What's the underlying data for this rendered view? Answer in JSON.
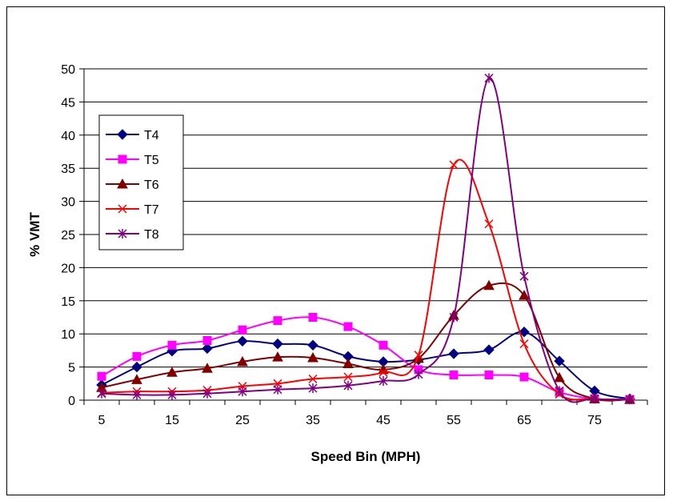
{
  "chart_data": {
    "type": "line",
    "title": "",
    "xlabel": "Speed Bin (MPH)",
    "ylabel": "% VMT",
    "x": [
      5,
      10,
      15,
      20,
      25,
      30,
      35,
      40,
      45,
      50,
      55,
      60,
      65,
      70,
      75,
      80
    ],
    "x_tick_labels": [
      "5",
      "15",
      "25",
      "35",
      "45",
      "55",
      "65",
      "75"
    ],
    "ylim": [
      0,
      50
    ],
    "y_ticks": [
      0,
      5,
      10,
      15,
      20,
      25,
      30,
      35,
      40,
      45,
      50
    ],
    "grid": "horizontal",
    "legend_position": "left",
    "series": [
      {
        "name": "T4",
        "color": "#000080",
        "marker": "diamond",
        "values": [
          2.3,
          5.0,
          7.4,
          7.8,
          8.9,
          8.5,
          8.3,
          6.6,
          5.8,
          6.1,
          7.0,
          7.6,
          10.3,
          5.9,
          1.4,
          0.2
        ]
      },
      {
        "name": "T5",
        "color": "#FF00FF",
        "marker": "square",
        "values": [
          3.6,
          6.6,
          8.3,
          9.0,
          10.6,
          12.0,
          12.5,
          11.1,
          8.3,
          4.6,
          3.8,
          3.8,
          3.5,
          1.2,
          0.2,
          0.1
        ]
      },
      {
        "name": "T6",
        "color": "#800000",
        "marker": "triangle",
        "values": [
          1.9,
          3.1,
          4.2,
          4.8,
          5.8,
          6.5,
          6.4,
          5.5,
          4.6,
          6.3,
          12.8,
          17.3,
          15.8,
          3.4,
          0.2,
          0.1
        ]
      },
      {
        "name": "T7",
        "color": "#FF0000",
        "marker": "x",
        "values": [
          1.1,
          1.3,
          1.3,
          1.5,
          2.1,
          2.5,
          3.2,
          3.5,
          4.2,
          6.8,
          35.5,
          26.6,
          8.5,
          0.9,
          0.2,
          0.1
        ]
      },
      {
        "name": "T8",
        "color": "#800080",
        "marker": "asterisk",
        "values": [
          1.0,
          0.8,
          0.8,
          1.0,
          1.3,
          1.6,
          1.8,
          2.2,
          2.9,
          3.9,
          12.5,
          48.6,
          18.7,
          1.4,
          0.2,
          0.1
        ]
      }
    ]
  }
}
